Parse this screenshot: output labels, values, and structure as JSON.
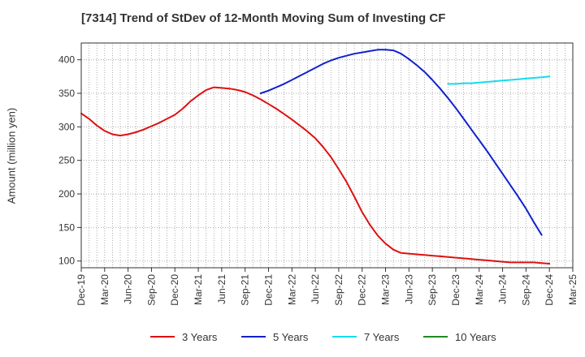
{
  "chart_data": {
    "type": "line",
    "title": "[7314]  Trend of StDev of 12-Month Moving Sum of Investing CF",
    "ylabel": "Amount (million yen)",
    "xlabel": "",
    "ylim": [
      90,
      425
    ],
    "y_ticks": [
      100,
      150,
      200,
      250,
      300,
      350,
      400
    ],
    "x_ticks": [
      "Dec-19",
      "Mar-20",
      "Jun-20",
      "Sep-20",
      "Dec-20",
      "Mar-21",
      "Jun-21",
      "Sep-21",
      "Dec-21",
      "Mar-22",
      "Jun-22",
      "Sep-22",
      "Dec-22",
      "Mar-23",
      "Jun-23",
      "Sep-23",
      "Dec-23",
      "Mar-24",
      "Jun-24",
      "Sep-24",
      "Dec-24",
      "Mar-25"
    ],
    "grid": true,
    "legend_position": "bottom",
    "series": [
      {
        "name": "3 Years",
        "color": "#dd1111",
        "points": [
          [
            "Dec-19",
            320
          ],
          [
            "Jan-20",
            312
          ],
          [
            "Feb-20",
            302
          ],
          [
            "Mar-20",
            294
          ],
          [
            "Apr-20",
            289
          ],
          [
            "May-20",
            287
          ],
          [
            "Jun-20",
            289
          ],
          [
            "Jul-20",
            292
          ],
          [
            "Aug-20",
            296
          ],
          [
            "Sep-20",
            301
          ],
          [
            "Oct-20",
            306
          ],
          [
            "Nov-20",
            312
          ],
          [
            "Dec-20",
            318
          ],
          [
            "Jan-21",
            327
          ],
          [
            "Feb-21",
            338
          ],
          [
            "Mar-21",
            347
          ],
          [
            "Apr-21",
            355
          ],
          [
            "May-21",
            359
          ],
          [
            "Jun-21",
            358
          ],
          [
            "Jul-21",
            357
          ],
          [
            "Aug-21",
            355
          ],
          [
            "Sep-21",
            352
          ],
          [
            "Oct-21",
            347
          ],
          [
            "Nov-21",
            341
          ],
          [
            "Dec-21",
            334
          ],
          [
            "Jan-22",
            327
          ],
          [
            "Feb-22",
            319
          ],
          [
            "Mar-22",
            311
          ],
          [
            "Apr-22",
            302
          ],
          [
            "May-22",
            293
          ],
          [
            "Jun-22",
            283
          ],
          [
            "Jul-22",
            270
          ],
          [
            "Aug-22",
            255
          ],
          [
            "Sep-22",
            237
          ],
          [
            "Oct-22",
            218
          ],
          [
            "Nov-22",
            196
          ],
          [
            "Dec-22",
            173
          ],
          [
            "Jan-23",
            154
          ],
          [
            "Feb-23",
            138
          ],
          [
            "Mar-23",
            126
          ],
          [
            "Apr-23",
            117
          ],
          [
            "May-23",
            112
          ],
          [
            "Jun-23",
            111
          ],
          [
            "Jul-23",
            110
          ],
          [
            "Aug-23",
            109
          ],
          [
            "Sep-23",
            108
          ],
          [
            "Oct-23",
            107
          ],
          [
            "Nov-23",
            106
          ],
          [
            "Dec-23",
            105
          ],
          [
            "Jan-24",
            104
          ],
          [
            "Feb-24",
            103
          ],
          [
            "Mar-24",
            102
          ],
          [
            "Apr-24",
            101
          ],
          [
            "May-24",
            100
          ],
          [
            "Jun-24",
            99
          ],
          [
            "Jul-24",
            98
          ],
          [
            "Aug-24",
            98
          ],
          [
            "Sep-24",
            98
          ],
          [
            "Oct-24",
            98
          ],
          [
            "Nov-24",
            97
          ],
          [
            "Dec-24",
            96
          ]
        ]
      },
      {
        "name": "5 Years",
        "color": "#1122cc",
        "points": [
          [
            "Nov-21",
            350
          ],
          [
            "Dec-21",
            354
          ],
          [
            "Jan-22",
            359
          ],
          [
            "Feb-22",
            364
          ],
          [
            "Mar-22",
            370
          ],
          [
            "Apr-22",
            376
          ],
          [
            "May-22",
            382
          ],
          [
            "Jun-22",
            388
          ],
          [
            "Jul-22",
            394
          ],
          [
            "Aug-22",
            399
          ],
          [
            "Sep-22",
            403
          ],
          [
            "Oct-22",
            406
          ],
          [
            "Nov-22",
            409
          ],
          [
            "Dec-22",
            411
          ],
          [
            "Jan-23",
            413
          ],
          [
            "Feb-23",
            415
          ],
          [
            "Mar-23",
            415
          ],
          [
            "Apr-23",
            414
          ],
          [
            "May-23",
            409
          ],
          [
            "Jun-23",
            401
          ],
          [
            "Jul-23",
            392
          ],
          [
            "Aug-23",
            382
          ],
          [
            "Sep-23",
            370
          ],
          [
            "Oct-23",
            357
          ],
          [
            "Nov-23",
            343
          ],
          [
            "Dec-23",
            328
          ],
          [
            "Jan-24",
            312
          ],
          [
            "Feb-24",
            296
          ],
          [
            "Mar-24",
            280
          ],
          [
            "Apr-24",
            264
          ],
          [
            "May-24",
            247
          ],
          [
            "Jun-24",
            230
          ],
          [
            "Jul-24",
            213
          ],
          [
            "Aug-24",
            196
          ],
          [
            "Sep-24",
            178
          ],
          [
            "Oct-24",
            158
          ],
          [
            "Nov-24",
            139
          ]
        ]
      },
      {
        "name": "7 Years",
        "color": "#11ddee",
        "points": [
          [
            "Nov-23",
            364
          ],
          [
            "Dec-23",
            364
          ],
          [
            "Jan-24",
            365
          ],
          [
            "Feb-24",
            365
          ],
          [
            "Mar-24",
            366
          ],
          [
            "Apr-24",
            367
          ],
          [
            "May-24",
            368
          ],
          [
            "Jun-24",
            369
          ],
          [
            "Jul-24",
            370
          ],
          [
            "Aug-24",
            371
          ],
          [
            "Sep-24",
            372
          ],
          [
            "Oct-24",
            373
          ],
          [
            "Nov-24",
            374
          ],
          [
            "Dec-24",
            375
          ]
        ]
      },
      {
        "name": "10 Years",
        "color": "#228822",
        "points": []
      }
    ]
  }
}
